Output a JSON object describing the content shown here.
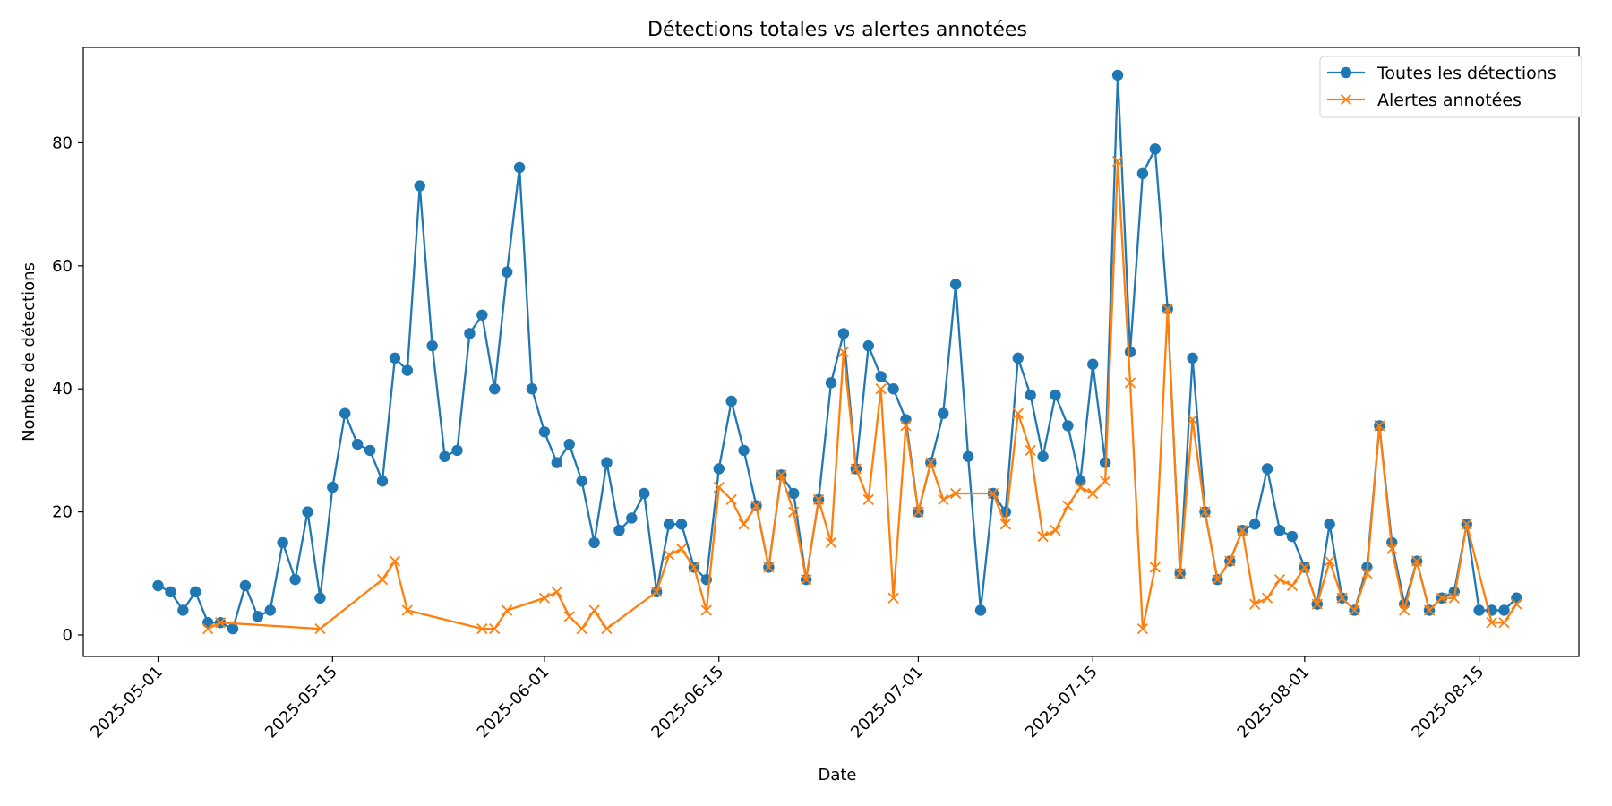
{
  "chart_data": {
    "type": "line",
    "title": "Détections totales vs alertes annotées",
    "xlabel": "Date",
    "ylabel": "Nombre de détections",
    "x_tick_labels": [
      "2025-05-01",
      "2025-05-15",
      "2025-06-01",
      "2025-06-15",
      "2025-07-01",
      "2025-07-15",
      "2025-08-01",
      "2025-08-15"
    ],
    "y_ticks": [
      0,
      20,
      40,
      60,
      80
    ],
    "xlim": [
      "2025-04-25",
      "2025-08-23"
    ],
    "ylim": [
      -3.5,
      95.5
    ],
    "grid": false,
    "legend_position": "top-right",
    "colors": {
      "series1": "#1f77b4",
      "series2": "#ff7f0e"
    },
    "series": [
      {
        "name": "Toutes les détections",
        "marker": "circle",
        "points": [
          [
            "2025-05-01",
            8
          ],
          [
            "2025-05-02",
            7
          ],
          [
            "2025-05-03",
            4
          ],
          [
            "2025-05-04",
            7
          ],
          [
            "2025-05-05",
            2
          ],
          [
            "2025-05-06",
            2
          ],
          [
            "2025-05-07",
            1
          ],
          [
            "2025-05-08",
            8
          ],
          [
            "2025-05-09",
            3
          ],
          [
            "2025-05-10",
            4
          ],
          [
            "2025-05-11",
            15
          ],
          [
            "2025-05-12",
            9
          ],
          [
            "2025-05-13",
            20
          ],
          [
            "2025-05-14",
            6
          ],
          [
            "2025-05-15",
            24
          ],
          [
            "2025-05-16",
            36
          ],
          [
            "2025-05-17",
            31
          ],
          [
            "2025-05-18",
            30
          ],
          [
            "2025-05-19",
            25
          ],
          [
            "2025-05-20",
            45
          ],
          [
            "2025-05-21",
            43
          ],
          [
            "2025-05-22",
            73
          ],
          [
            "2025-05-23",
            47
          ],
          [
            "2025-05-24",
            29
          ],
          [
            "2025-05-25",
            30
          ],
          [
            "2025-05-26",
            49
          ],
          [
            "2025-05-27",
            52
          ],
          [
            "2025-05-28",
            40
          ],
          [
            "2025-05-29",
            59
          ],
          [
            "2025-05-30",
            76
          ],
          [
            "2025-05-31",
            40
          ],
          [
            "2025-06-01",
            33
          ],
          [
            "2025-06-02",
            28
          ],
          [
            "2025-06-03",
            31
          ],
          [
            "2025-06-04",
            25
          ],
          [
            "2025-06-05",
            15
          ],
          [
            "2025-06-06",
            28
          ],
          [
            "2025-06-07",
            17
          ],
          [
            "2025-06-08",
            19
          ],
          [
            "2025-06-09",
            23
          ],
          [
            "2025-06-10",
            7
          ],
          [
            "2025-06-11",
            18
          ],
          [
            "2025-06-12",
            18
          ],
          [
            "2025-06-13",
            11
          ],
          [
            "2025-06-14",
            9
          ],
          [
            "2025-06-15",
            27
          ],
          [
            "2025-06-16",
            38
          ],
          [
            "2025-06-17",
            30
          ],
          [
            "2025-06-18",
            21
          ],
          [
            "2025-06-19",
            11
          ],
          [
            "2025-06-20",
            26
          ],
          [
            "2025-06-21",
            23
          ],
          [
            "2025-06-22",
            9
          ],
          [
            "2025-06-23",
            22
          ],
          [
            "2025-06-24",
            41
          ],
          [
            "2025-06-25",
            49
          ],
          [
            "2025-06-26",
            27
          ],
          [
            "2025-06-27",
            47
          ],
          [
            "2025-06-28",
            42
          ],
          [
            "2025-06-29",
            40
          ],
          [
            "2025-06-30",
            35
          ],
          [
            "2025-07-01",
            20
          ],
          [
            "2025-07-02",
            28
          ],
          [
            "2025-07-03",
            36
          ],
          [
            "2025-07-04",
            57
          ],
          [
            "2025-07-05",
            29
          ],
          [
            "2025-07-06",
            4
          ],
          [
            "2025-07-07",
            23
          ],
          [
            "2025-07-08",
            20
          ],
          [
            "2025-07-09",
            45
          ],
          [
            "2025-07-10",
            39
          ],
          [
            "2025-07-11",
            29
          ],
          [
            "2025-07-12",
            39
          ],
          [
            "2025-07-13",
            34
          ],
          [
            "2025-07-14",
            25
          ],
          [
            "2025-07-15",
            44
          ],
          [
            "2025-07-16",
            28
          ],
          [
            "2025-07-17",
            91
          ],
          [
            "2025-07-18",
            46
          ],
          [
            "2025-07-19",
            75
          ],
          [
            "2025-07-20",
            79
          ],
          [
            "2025-07-21",
            53
          ],
          [
            "2025-07-22",
            10
          ],
          [
            "2025-07-23",
            45
          ],
          [
            "2025-07-24",
            20
          ],
          [
            "2025-07-25",
            9
          ],
          [
            "2025-07-26",
            12
          ],
          [
            "2025-07-27",
            17
          ],
          [
            "2025-07-28",
            18
          ],
          [
            "2025-07-29",
            27
          ],
          [
            "2025-07-30",
            17
          ],
          [
            "2025-07-31",
            16
          ],
          [
            "2025-08-01",
            11
          ],
          [
            "2025-08-02",
            5
          ],
          [
            "2025-08-03",
            18
          ],
          [
            "2025-08-04",
            6
          ],
          [
            "2025-08-05",
            4
          ],
          [
            "2025-08-06",
            11
          ],
          [
            "2025-08-07",
            34
          ],
          [
            "2025-08-08",
            15
          ],
          [
            "2025-08-09",
            5
          ],
          [
            "2025-08-10",
            12
          ],
          [
            "2025-08-11",
            4
          ],
          [
            "2025-08-12",
            6
          ],
          [
            "2025-08-13",
            7
          ],
          [
            "2025-08-14",
            18
          ],
          [
            "2025-08-15",
            4
          ],
          [
            "2025-08-16",
            4
          ],
          [
            "2025-08-17",
            4
          ],
          [
            "2025-08-18",
            6
          ]
        ]
      },
      {
        "name": "Alertes annotées",
        "marker": "x",
        "points": [
          [
            "2025-05-05",
            1
          ],
          [
            "2025-05-06",
            2
          ],
          [
            "2025-05-14",
            1
          ],
          [
            "2025-05-19",
            9
          ],
          [
            "2025-05-20",
            12
          ],
          [
            "2025-05-21",
            4
          ],
          [
            "2025-05-27",
            1
          ],
          [
            "2025-05-28",
            1
          ],
          [
            "2025-05-29",
            4
          ],
          [
            "2025-06-01",
            6
          ],
          [
            "2025-06-02",
            7
          ],
          [
            "2025-06-03",
            3
          ],
          [
            "2025-06-04",
            1
          ],
          [
            "2025-06-05",
            4
          ],
          [
            "2025-06-06",
            1
          ],
          [
            "2025-06-10",
            7
          ],
          [
            "2025-06-11",
            13
          ],
          [
            "2025-06-12",
            14
          ],
          [
            "2025-06-13",
            11
          ],
          [
            "2025-06-14",
            4
          ],
          [
            "2025-06-15",
            24
          ],
          [
            "2025-06-16",
            22
          ],
          [
            "2025-06-17",
            18
          ],
          [
            "2025-06-18",
            21
          ],
          [
            "2025-06-19",
            11
          ],
          [
            "2025-06-20",
            26
          ],
          [
            "2025-06-21",
            20
          ],
          [
            "2025-06-22",
            9
          ],
          [
            "2025-06-23",
            22
          ],
          [
            "2025-06-24",
            15
          ],
          [
            "2025-06-25",
            46
          ],
          [
            "2025-06-26",
            27
          ],
          [
            "2025-06-27",
            22
          ],
          [
            "2025-06-28",
            40
          ],
          [
            "2025-06-29",
            6
          ],
          [
            "2025-06-30",
            34
          ],
          [
            "2025-07-01",
            20
          ],
          [
            "2025-07-02",
            28
          ],
          [
            "2025-07-03",
            22
          ],
          [
            "2025-07-04",
            23
          ],
          [
            "2025-07-07",
            23
          ],
          [
            "2025-07-08",
            18
          ],
          [
            "2025-07-09",
            36
          ],
          [
            "2025-07-10",
            30
          ],
          [
            "2025-07-11",
            16
          ],
          [
            "2025-07-12",
            17
          ],
          [
            "2025-07-13",
            21
          ],
          [
            "2025-07-14",
            24
          ],
          [
            "2025-07-15",
            23
          ],
          [
            "2025-07-16",
            25
          ],
          [
            "2025-07-17",
            77
          ],
          [
            "2025-07-18",
            41
          ],
          [
            "2025-07-19",
            1
          ],
          [
            "2025-07-20",
            11
          ],
          [
            "2025-07-21",
            53
          ],
          [
            "2025-07-22",
            10
          ],
          [
            "2025-07-23",
            35
          ],
          [
            "2025-07-24",
            20
          ],
          [
            "2025-07-25",
            9
          ],
          [
            "2025-07-26",
            12
          ],
          [
            "2025-07-27",
            17
          ],
          [
            "2025-07-28",
            5
          ],
          [
            "2025-07-29",
            6
          ],
          [
            "2025-07-30",
            9
          ],
          [
            "2025-07-31",
            8
          ],
          [
            "2025-08-01",
            11
          ],
          [
            "2025-08-02",
            5
          ],
          [
            "2025-08-03",
            12
          ],
          [
            "2025-08-04",
            6
          ],
          [
            "2025-08-05",
            4
          ],
          [
            "2025-08-06",
            10
          ],
          [
            "2025-08-07",
            34
          ],
          [
            "2025-08-08",
            14
          ],
          [
            "2025-08-09",
            4
          ],
          [
            "2025-08-10",
            12
          ],
          [
            "2025-08-11",
            4
          ],
          [
            "2025-08-12",
            6
          ],
          [
            "2025-08-13",
            6
          ],
          [
            "2025-08-14",
            18
          ],
          [
            "2025-08-16",
            2
          ],
          [
            "2025-08-17",
            2
          ],
          [
            "2025-08-18",
            5
          ]
        ]
      }
    ]
  }
}
